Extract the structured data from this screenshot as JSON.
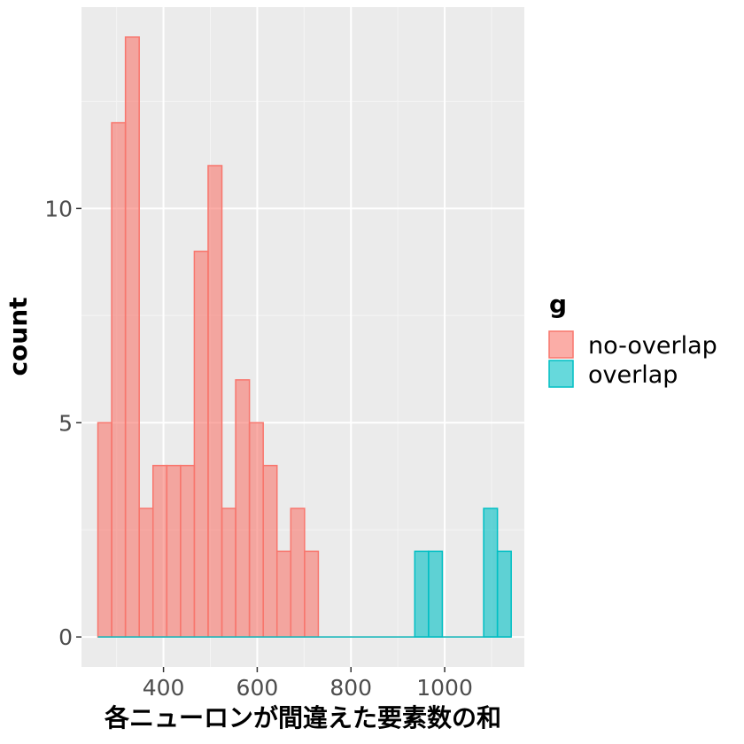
{
  "chart_data": {
    "type": "bar",
    "xlabel": "各ニューロンが間違えた要素数の和",
    "ylabel": "count",
    "xlim": [
      225,
      1170
    ],
    "ylim": [
      -0.7,
      14.7
    ],
    "x_ticks": [
      400,
      600,
      800,
      1000
    ],
    "y_ticks": [
      0,
      5,
      10
    ],
    "grid": true,
    "legend": {
      "title": "g",
      "position": "right"
    },
    "bin_start": 260,
    "bin_width": 29.4,
    "series": [
      {
        "name": "no-overlap",
        "fill": "#F8766D",
        "counts": [
          5,
          12,
          14,
          3,
          4,
          4,
          4,
          9,
          11,
          3,
          6,
          5,
          4,
          2,
          3,
          2,
          0,
          0,
          0,
          0,
          0,
          0,
          0,
          0,
          0,
          0,
          0,
          0,
          0,
          0
        ]
      },
      {
        "name": "overlap",
        "fill": "#00BFC4",
        "counts": [
          0,
          0,
          0,
          0,
          0,
          0,
          0,
          0,
          0,
          0,
          0,
          0,
          0,
          0,
          0,
          0,
          0,
          0,
          0,
          0,
          0,
          0,
          0,
          2,
          2,
          0,
          0,
          0,
          3,
          2
        ]
      }
    ]
  }
}
